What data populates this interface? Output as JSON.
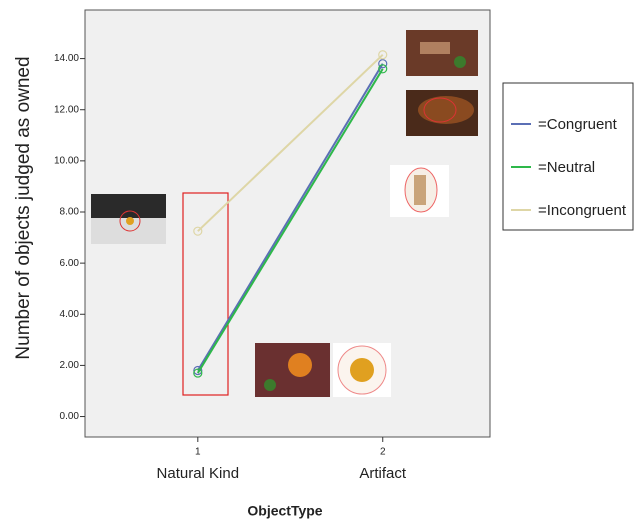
{
  "chart_data": {
    "type": "line",
    "y_label": "Number of objects judged as owned",
    "x_label": "ObjectType",
    "x": [
      1,
      2
    ],
    "categories": [
      "Natural Kind",
      "Artifact"
    ],
    "xlim": [
      0.39,
      2.58
    ],
    "xticks": [
      1,
      2
    ],
    "ylim": [
      -0.8,
      15.9
    ],
    "yticks": [
      {
        "value": 0,
        "label": "0.00"
      },
      {
        "value": 2,
        "label": "2.00"
      },
      {
        "value": 4,
        "label": "4.00"
      },
      {
        "value": 6,
        "label": "6.00"
      },
      {
        "value": 8,
        "label": "8.00"
      },
      {
        "value": 10,
        "label": "10.00"
      },
      {
        "value": 12,
        "label": "12.00"
      },
      {
        "value": 14,
        "label": "14.00"
      }
    ],
    "series": [
      {
        "name": "=Congruent",
        "color": "#5b6fb5",
        "values": [
          1.8,
          13.8
        ]
      },
      {
        "name": "=Neutral",
        "color": "#2eb84a",
        "values": [
          1.7,
          13.6
        ]
      },
      {
        "name": "=Incongruent",
        "color": "#ded6a6",
        "values": [
          7.25,
          14.15
        ]
      }
    ]
  }
}
